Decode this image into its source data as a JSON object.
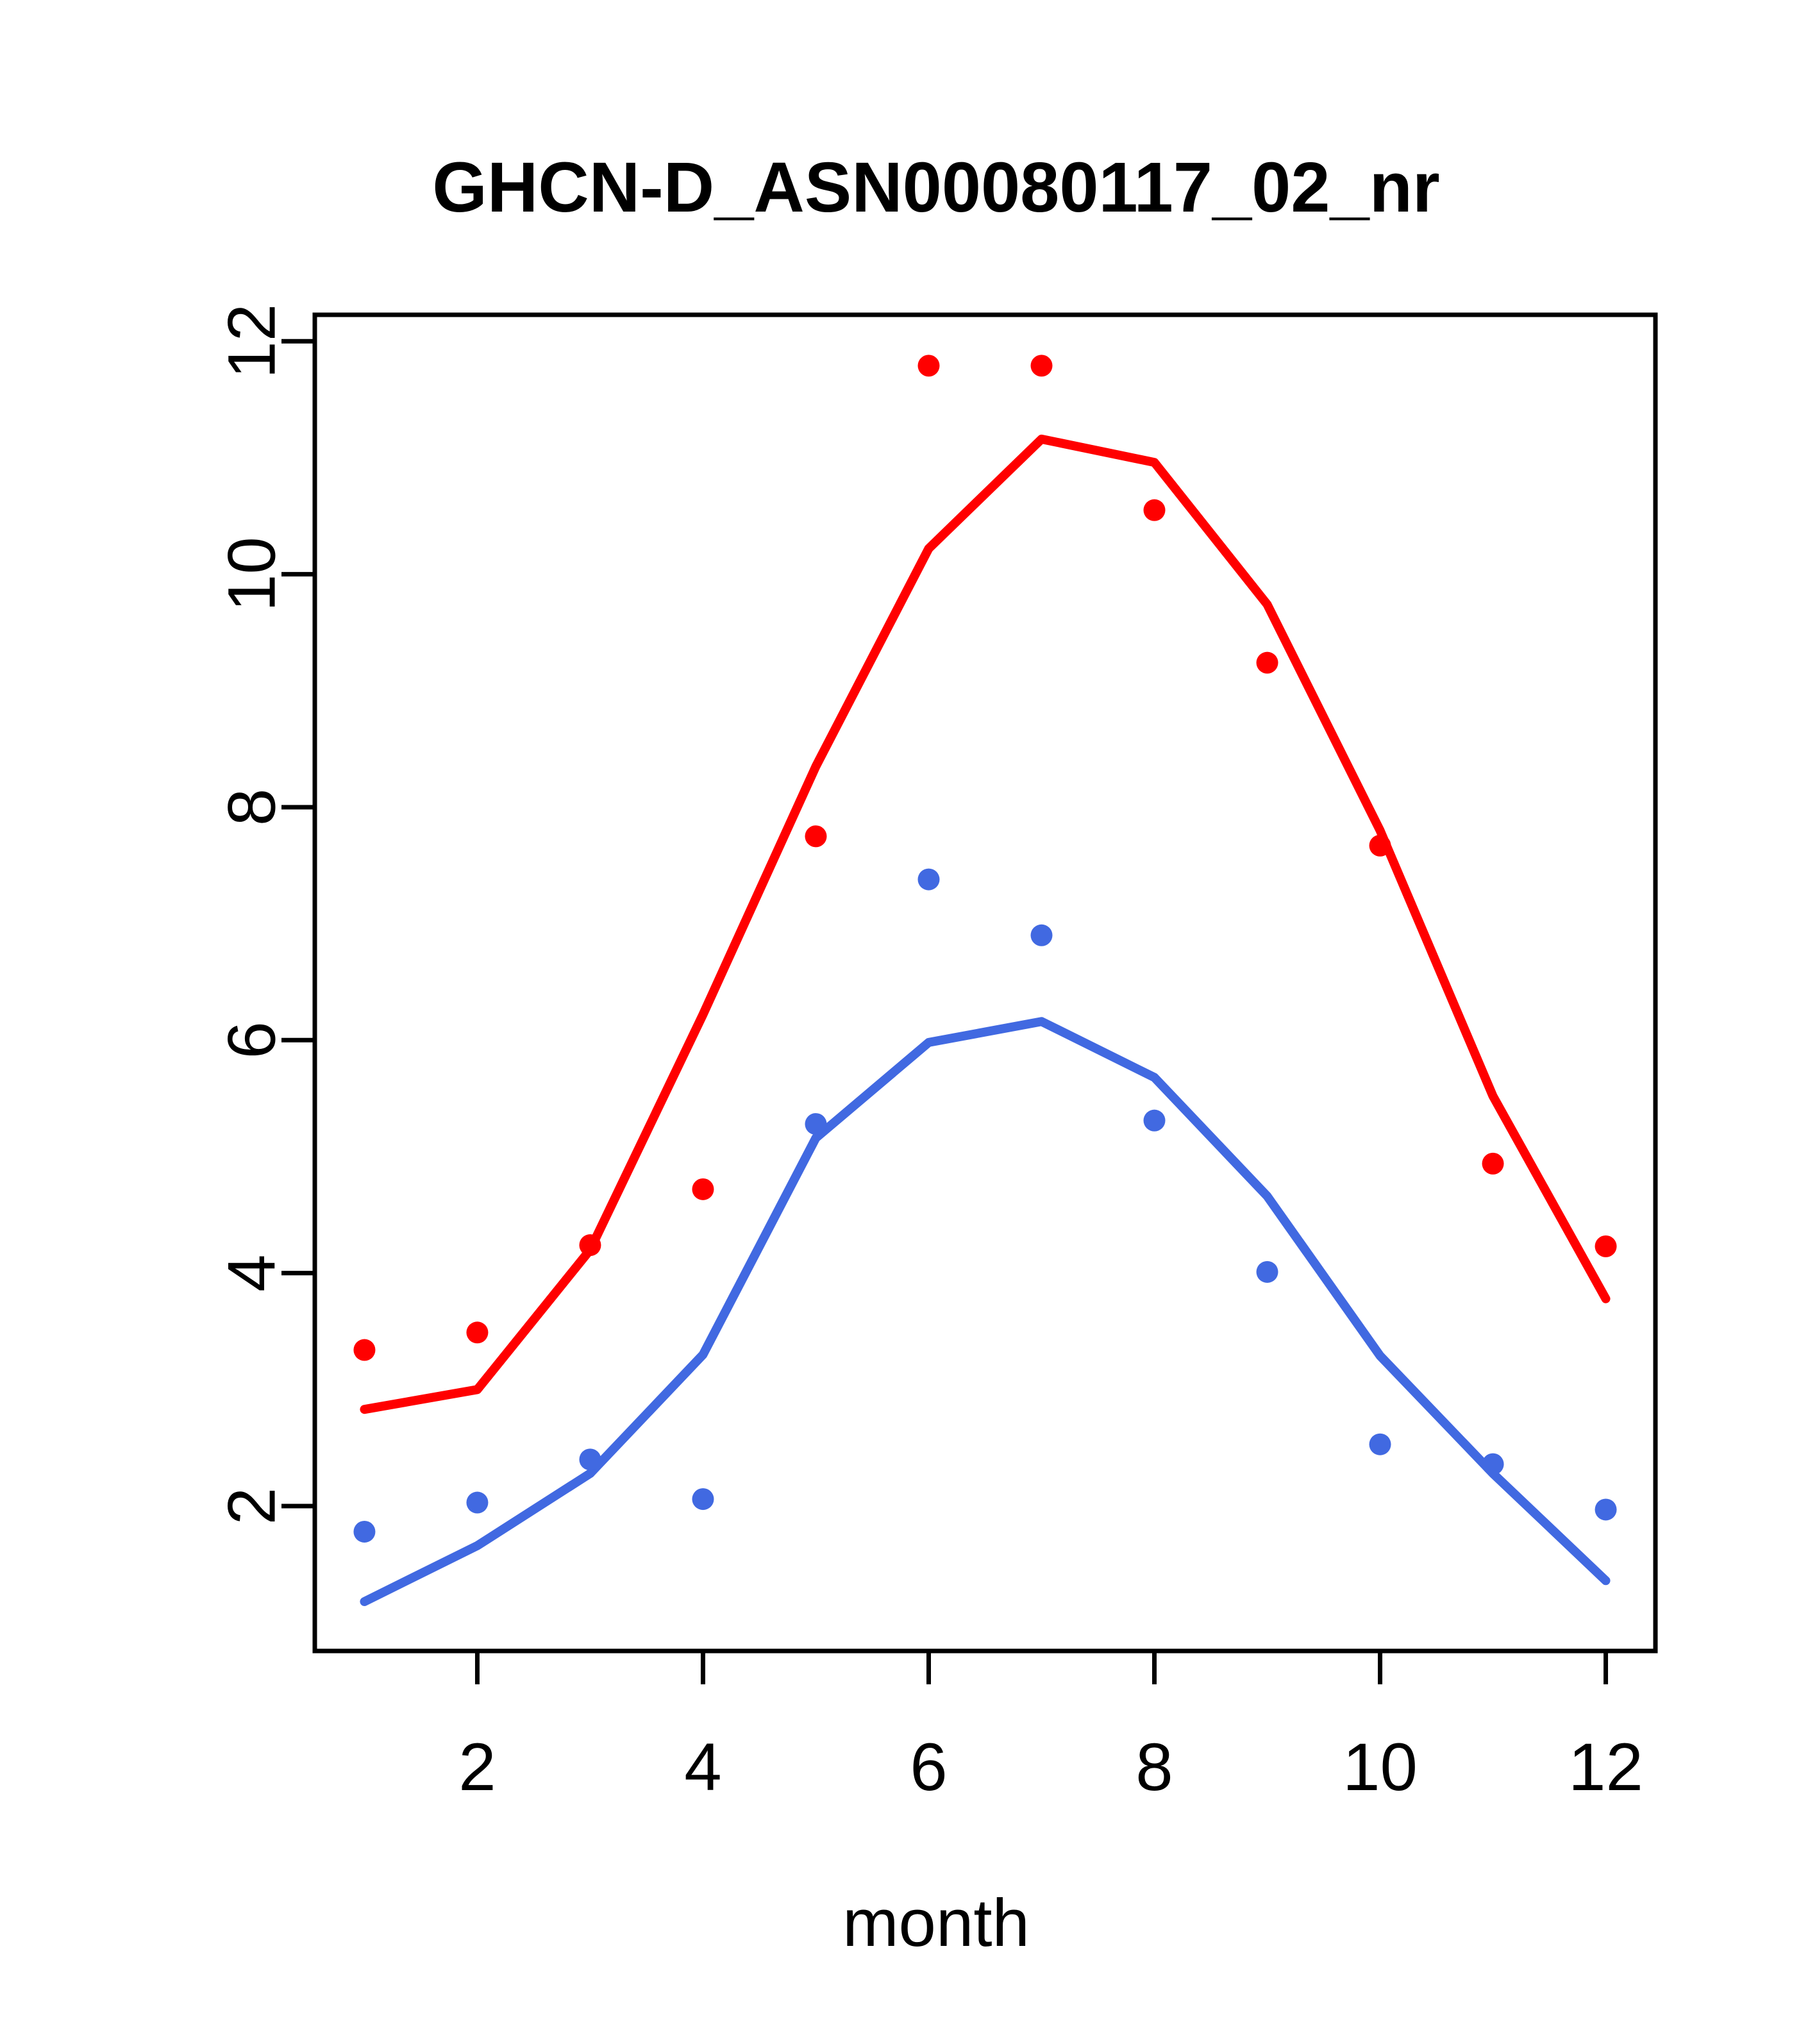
{
  "chart_data": {
    "type": "line+scatter",
    "title": "GHCN-D_ASN00080117_02_nr",
    "xlabel": "month",
    "ylabel": "",
    "categories": [
      1,
      2,
      3,
      4,
      5,
      6,
      7,
      8,
      9,
      10,
      11,
      12
    ],
    "x_ticks": [
      2,
      4,
      6,
      8,
      10,
      12
    ],
    "y_ticks": [
      2,
      4,
      6,
      8,
      10,
      12
    ],
    "xlim": [
      0.56,
      12.44
    ],
    "ylim": [
      0.756,
      12.227
    ],
    "grid": false,
    "legend_position": "none",
    "colors": {
      "red": "#FF0000",
      "blue": "#4169E1",
      "axis": "#000000"
    },
    "series": [
      {
        "name": "red-points",
        "kind": "scatter",
        "color": "#FF0000",
        "values": [
          3.34,
          3.49,
          4.24,
          4.72,
          7.75,
          11.79,
          11.79,
          10.55,
          9.24,
          7.67,
          4.94,
          4.23
        ]
      },
      {
        "name": "blue-points",
        "kind": "scatter",
        "color": "#4169E1",
        "values": [
          1.78,
          2.03,
          2.4,
          2.06,
          5.28,
          7.38,
          6.9,
          5.31,
          4.01,
          2.53,
          2.36,
          1.97
        ]
      },
      {
        "name": "red-line",
        "kind": "line",
        "color": "#FF0000",
        "values": [
          2.83,
          3.0,
          4.2,
          6.22,
          8.35,
          10.22,
          11.16,
          10.96,
          9.74,
          7.8,
          5.52,
          3.78
        ]
      },
      {
        "name": "blue-line",
        "kind": "line",
        "color": "#4169E1",
        "values": [
          1.18,
          1.66,
          2.28,
          3.3,
          5.16,
          5.98,
          6.16,
          5.68,
          4.66,
          3.29,
          2.28,
          1.36
        ]
      }
    ]
  }
}
